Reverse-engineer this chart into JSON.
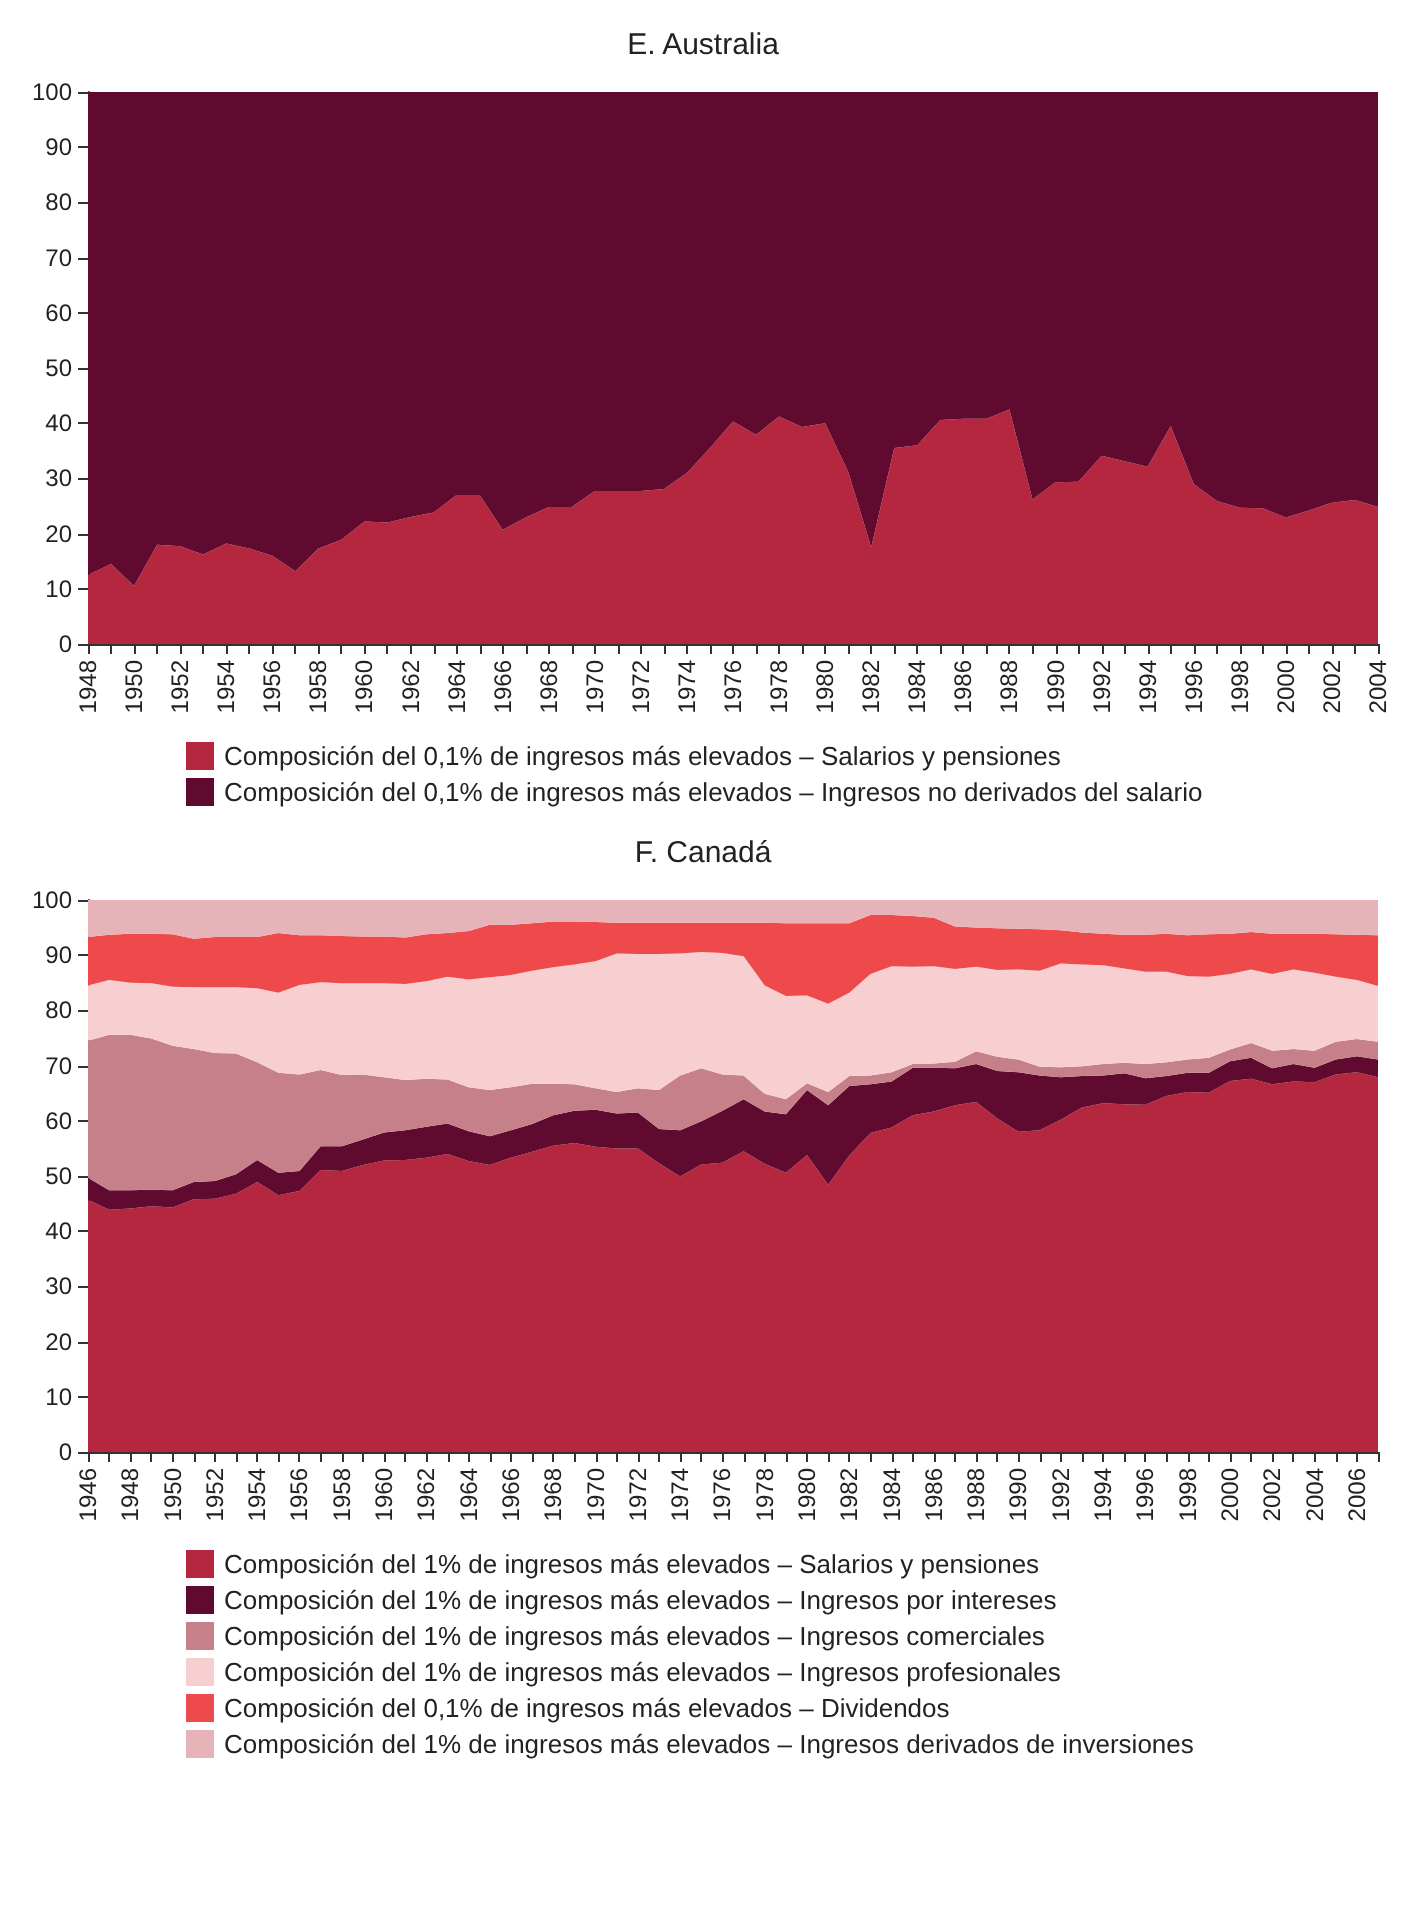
{
  "chart_data": [
    {
      "type": "area",
      "title": "E. Australia",
      "stacked": true,
      "grid": false,
      "legend": "bottom",
      "marker": "none",
      "categories": [
        "1948",
        null,
        "1950",
        null,
        "1952",
        null,
        "1954",
        null,
        "1956",
        null,
        "1958",
        null,
        "1960",
        null,
        "1962",
        null,
        "1964",
        null,
        "1966",
        null,
        "1968",
        null,
        "1970",
        null,
        "1972",
        null,
        "1974",
        null,
        "1976",
        null,
        "1978",
        null,
        "1980",
        null,
        "1982",
        null,
        "1984",
        null,
        "1986",
        null,
        "1988",
        null,
        "1990",
        null,
        "1992",
        null,
        "1994",
        null,
        "1996",
        null,
        "1998",
        null,
        "2000",
        null,
        "2002",
        null,
        "2004"
      ],
      "ylim": [
        0,
        100
      ],
      "yticks": [
        0,
        10,
        20,
        30,
        40,
        50,
        60,
        70,
        80,
        90,
        100
      ],
      "series": [
        {
          "name": "Composición del 0,1% de ingresos más elevados – Salarios y pensiones",
          "color": "#b5263f",
          "values": [
            12.5,
            14.5,
            10.5,
            18,
            17.7,
            16.2,
            18.2,
            17.3,
            16,
            13.2,
            17.3,
            18.9,
            22.2,
            22,
            23,
            23.8,
            27,
            27,
            20.7,
            22.9,
            24.8,
            24.8,
            27.7,
            27.7,
            27.7,
            28.1,
            31,
            35.5,
            40.3,
            37.9,
            41.2,
            39.3,
            40,
            31.2,
            17.5,
            35.5,
            36,
            40.6,
            40.8,
            40.8,
            42.5,
            26.2,
            29.3,
            29.4,
            34.1,
            33.1,
            32.1,
            39.5,
            29,
            25.9,
            24.7,
            24.6,
            22.9,
            24.2,
            25.6,
            26.1,
            24.8
          ]
        },
        {
          "name": "Composición del 0,1% de ingresos más elevados – Ingresos no derivados del salario",
          "color": "#5f0a2e",
          "values": [
            87.5,
            85.5,
            89.5,
            82,
            82.3,
            83.8,
            81.8,
            82.7,
            84,
            86.8,
            82.7,
            81.1,
            77.8,
            78,
            77,
            76.2,
            73,
            73,
            79.3,
            77.1,
            75.2,
            75.2,
            72.3,
            72.3,
            72.3,
            71.9,
            69,
            64.5,
            59.7,
            62.1,
            58.8,
            60.7,
            60,
            68.8,
            82.5,
            64.5,
            64,
            59.4,
            59.2,
            59.2,
            57.5,
            73.8,
            70.7,
            70.6,
            65.9,
            66.9,
            67.9,
            60.5,
            71,
            74.1,
            75.3,
            75.4,
            77.1,
            75.8,
            74.4,
            73.9,
            75.2
          ]
        }
      ]
    },
    {
      "type": "area",
      "title": "F. Canadá",
      "stacked": true,
      "grid": false,
      "legend": "bottom",
      "marker": "none",
      "categories": [
        "1946",
        null,
        "1948",
        null,
        "1950",
        null,
        "1952",
        null,
        "1954",
        null,
        "1956",
        null,
        "1958",
        null,
        "1960",
        null,
        "1962",
        null,
        "1964",
        null,
        "1966",
        null,
        "1968",
        null,
        "1970",
        null,
        "1972",
        null,
        "1974",
        null,
        "1976",
        null,
        "1978",
        null,
        "1980",
        null,
        "1982",
        null,
        "1984",
        null,
        "1986",
        null,
        "1988",
        null,
        "1990",
        null,
        "1992",
        null,
        "1994",
        null,
        "1996",
        null,
        "1998",
        null,
        "2000",
        null,
        "2002",
        null,
        "2004",
        null,
        "2006",
        null
      ],
      "ylim": [
        0,
        100
      ],
      "yticks": [
        0,
        10,
        20,
        30,
        40,
        50,
        60,
        70,
        80,
        90,
        100
      ],
      "series": [
        {
          "name": "Composición del 1% de ingresos más elevados – Salarios y pensiones",
          "color": "#b5263f",
          "values": [
            45.7,
            43.9,
            44.1,
            44.5,
            44.3,
            45.8,
            45.9,
            46.8,
            48.9,
            46.5,
            47.3,
            51.1,
            50.9,
            52,
            52.8,
            52.9,
            53.3,
            54,
            52.7,
            52,
            53.3,
            54.4,
            55.5,
            56,
            55.3,
            55,
            55,
            52.3,
            49.9,
            52.1,
            52.4,
            54.5,
            52.2,
            50.6,
            53.8,
            48.4,
            53.7,
            57.8,
            58.8,
            61,
            61.7,
            62.8,
            63.4,
            60.4,
            58,
            58.3,
            60.2,
            62.4,
            63.2,
            63,
            62.9,
            64.5,
            65.2,
            65.1,
            67.2,
            67.6,
            66.6,
            67.1,
            67,
            68.4,
            68.8,
            67.9
          ]
        },
        {
          "name": "Composición del 1% de ingresos más elevados – Ingresos por intereses",
          "color": "#5f0a2e",
          "values": [
            4.0,
            3.5,
            3.3,
            3.0,
            3.1,
            3.1,
            3.2,
            3.5,
            4.0,
            4.1,
            3.6,
            4.3,
            4.5,
            4.6,
            5.1,
            5.4,
            5.6,
            5.5,
            5.4,
            5.2,
            5.0,
            5.0,
            5.5,
            5.8,
            6.7,
            6.3,
            6.5,
            6.2,
            8.4,
            7.8,
            9.4,
            9.4,
            9.5,
            10.6,
            11.8,
            14.4,
            12.6,
            8.8,
            8.3,
            8.6,
            7.9,
            6.7,
            6.9,
            8.6,
            10.8,
            9.9,
            7.7,
            5.7,
            5.0,
            5.6,
            4.8,
            3.6,
            3.5,
            3.6,
            3.6,
            3.8,
            2.9,
            3.2,
            2.6,
            2.7,
            2.9,
            3.2
          ]
        },
        {
          "name": "Composición del 1% de ingresos más elevados – Ingresos comerciales",
          "color": "#c6808a",
          "values": [
            24.8,
            28.2,
            28.2,
            27.4,
            26.2,
            24.1,
            23.2,
            21.9,
            17.7,
            18.1,
            17.5,
            13.8,
            12.9,
            11.8,
            10.0,
            9.1,
            8.7,
            8.0,
            8.0,
            8.4,
            7.8,
            7.3,
            5.7,
            4.8,
            3.9,
            3.9,
            4.4,
            7.1,
            9.9,
            9.6,
            6.6,
            4.3,
            3.2,
            2.7,
            1.2,
            2.4,
            1.8,
            1.6,
            1.7,
            0.7,
            0.8,
            1.2,
            2.3,
            2.6,
            2.3,
            1.6,
            1.8,
            1.8,
            2.1,
            1.9,
            2.6,
            2.5,
            2.4,
            2.7,
            2.1,
            2.7,
            3.2,
            2.7,
            3.1,
            3.2,
            3.1,
            3.2
          ]
        },
        {
          "name": "Composición del 1% de ingresos más elevados – Ingresos profesionales",
          "color": "#f8cfd0",
          "values": [
            10.0,
            9.9,
            9.4,
            10.0,
            10.7,
            11.2,
            11.9,
            12.0,
            13.4,
            14.5,
            16.2,
            15.9,
            16.6,
            16.5,
            17.0,
            17.4,
            17.7,
            18.6,
            19.5,
            20.4,
            20.3,
            20.5,
            21.1,
            21.7,
            23.0,
            25.1,
            24.3,
            24.6,
            22.1,
            21.1,
            22.0,
            21.6,
            19.6,
            18.7,
            15.9,
            16.0,
            15.1,
            18.4,
            19.2,
            17.6,
            17.6,
            16.8,
            15.3,
            15.7,
            16.3,
            17.4,
            18.8,
            18.4,
            17.9,
            17.1,
            16.7,
            16.4,
            15.1,
            14.7,
            13.7,
            13.3,
            13.9,
            14.4,
            14.1,
            11.8,
            10.7,
            10.1
          ]
        },
        {
          "name": "Composición del 0,1% de ingresos más elevados – Dividendos",
          "color": "#ee4a4c",
          "values": [
            8.8,
            8.2,
            8.9,
            9.0,
            9.5,
            8.8,
            9.1,
            9.1,
            9.3,
            10.8,
            9.0,
            8.5,
            8.6,
            8.5,
            8.5,
            8.4,
            8.5,
            7.9,
            8.8,
            9.5,
            9.1,
            8.6,
            8.3,
            7.8,
            7.1,
            5.6,
            5.7,
            5.7,
            5.6,
            5.3,
            5.5,
            6.1,
            11.4,
            13.2,
            13.1,
            14.6,
            12.6,
            10.7,
            9.3,
            9.2,
            8.8,
            7.7,
            7.1,
            7.6,
            7.4,
            7.5,
            6.0,
            5.8,
            5.7,
            6.1,
            6.7,
            6.9,
            7.4,
            7.7,
            7.3,
            6.8,
            7.3,
            6.5,
            7.1,
            7.7,
            8.2,
            9.2
          ]
        },
        {
          "name": "Composición del 1% de ingresos más elevados – Ingresos derivados de inversiones",
          "color": "#e6b3b9",
          "values": [
            6.7,
            6.3,
            6.1,
            6.1,
            6.2,
            7.0,
            6.7,
            6.7,
            6.7,
            6.0,
            6.4,
            6.4,
            6.5,
            6.6,
            6.6,
            6.8,
            6.2,
            6.0,
            5.6,
            4.5,
            4.5,
            4.2,
            3.9,
            3.9,
            4.0,
            4.1,
            4.1,
            4.1,
            4.1,
            4.1,
            4.1,
            4.1,
            4.1,
            4.2,
            4.2,
            4.2,
            4.2,
            2.7,
            2.7,
            2.9,
            3.2,
            4.8,
            5.0,
            5.1,
            5.2,
            5.3,
            5.5,
            5.9,
            6.1,
            6.3,
            6.3,
            6.1,
            6.4,
            6.2,
            6.1,
            5.8,
            6.1,
            6.1,
            6.1,
            6.2,
            6.3,
            6.4
          ]
        }
      ]
    }
  ]
}
